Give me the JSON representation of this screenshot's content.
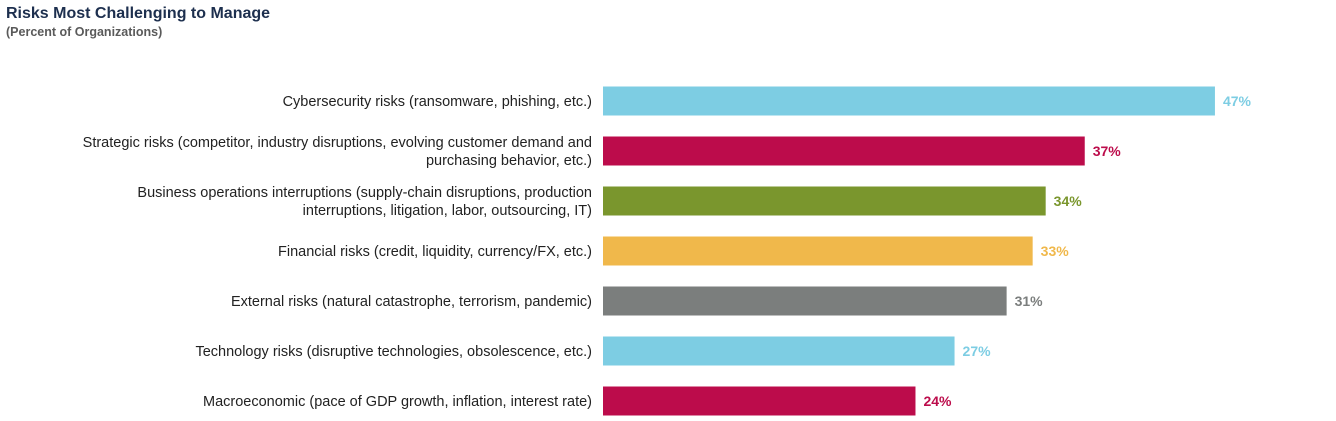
{
  "chart_data": {
    "type": "bar",
    "orientation": "horizontal",
    "title": "Risks Most Challenging to Manage",
    "subtitle": "(Percent of Organizations)",
    "xlabel": "",
    "ylabel": "",
    "xlim": [
      0,
      50
    ],
    "grid": false,
    "legend": "none",
    "categories": [
      [
        "Cybersecurity risks (ransomware, phishing, etc.)"
      ],
      [
        "Strategic risks (competitor, industry disruptions, evolving customer demand and",
        "purchasing behavior, etc.)"
      ],
      [
        "Business operations interruptions (supply-chain disruptions, production",
        "interruptions, litigation, labor, outsourcing, IT)"
      ],
      [
        "Financial risks (credit, liquidity, currency/FX, etc.)"
      ],
      [
        "External risks (natural catastrophe, terrorism, pandemic)"
      ],
      [
        "Technology risks (disruptive technologies, obsolescence, etc.)"
      ],
      [
        "Macroeconomic (pace of GDP growth, inflation, interest rate)"
      ]
    ],
    "values": [
      47,
      37,
      34,
      33,
      31,
      27,
      24
    ],
    "value_labels": [
      "47%",
      "37%",
      "34%",
      "33%",
      "31%",
      "27%",
      "24%"
    ],
    "bar_colors": [
      "#7dcde3",
      "#bc0c4b",
      "#7a962d",
      "#f0b84b",
      "#7b7e7d",
      "#7dcde3",
      "#bc0c4b"
    ]
  }
}
